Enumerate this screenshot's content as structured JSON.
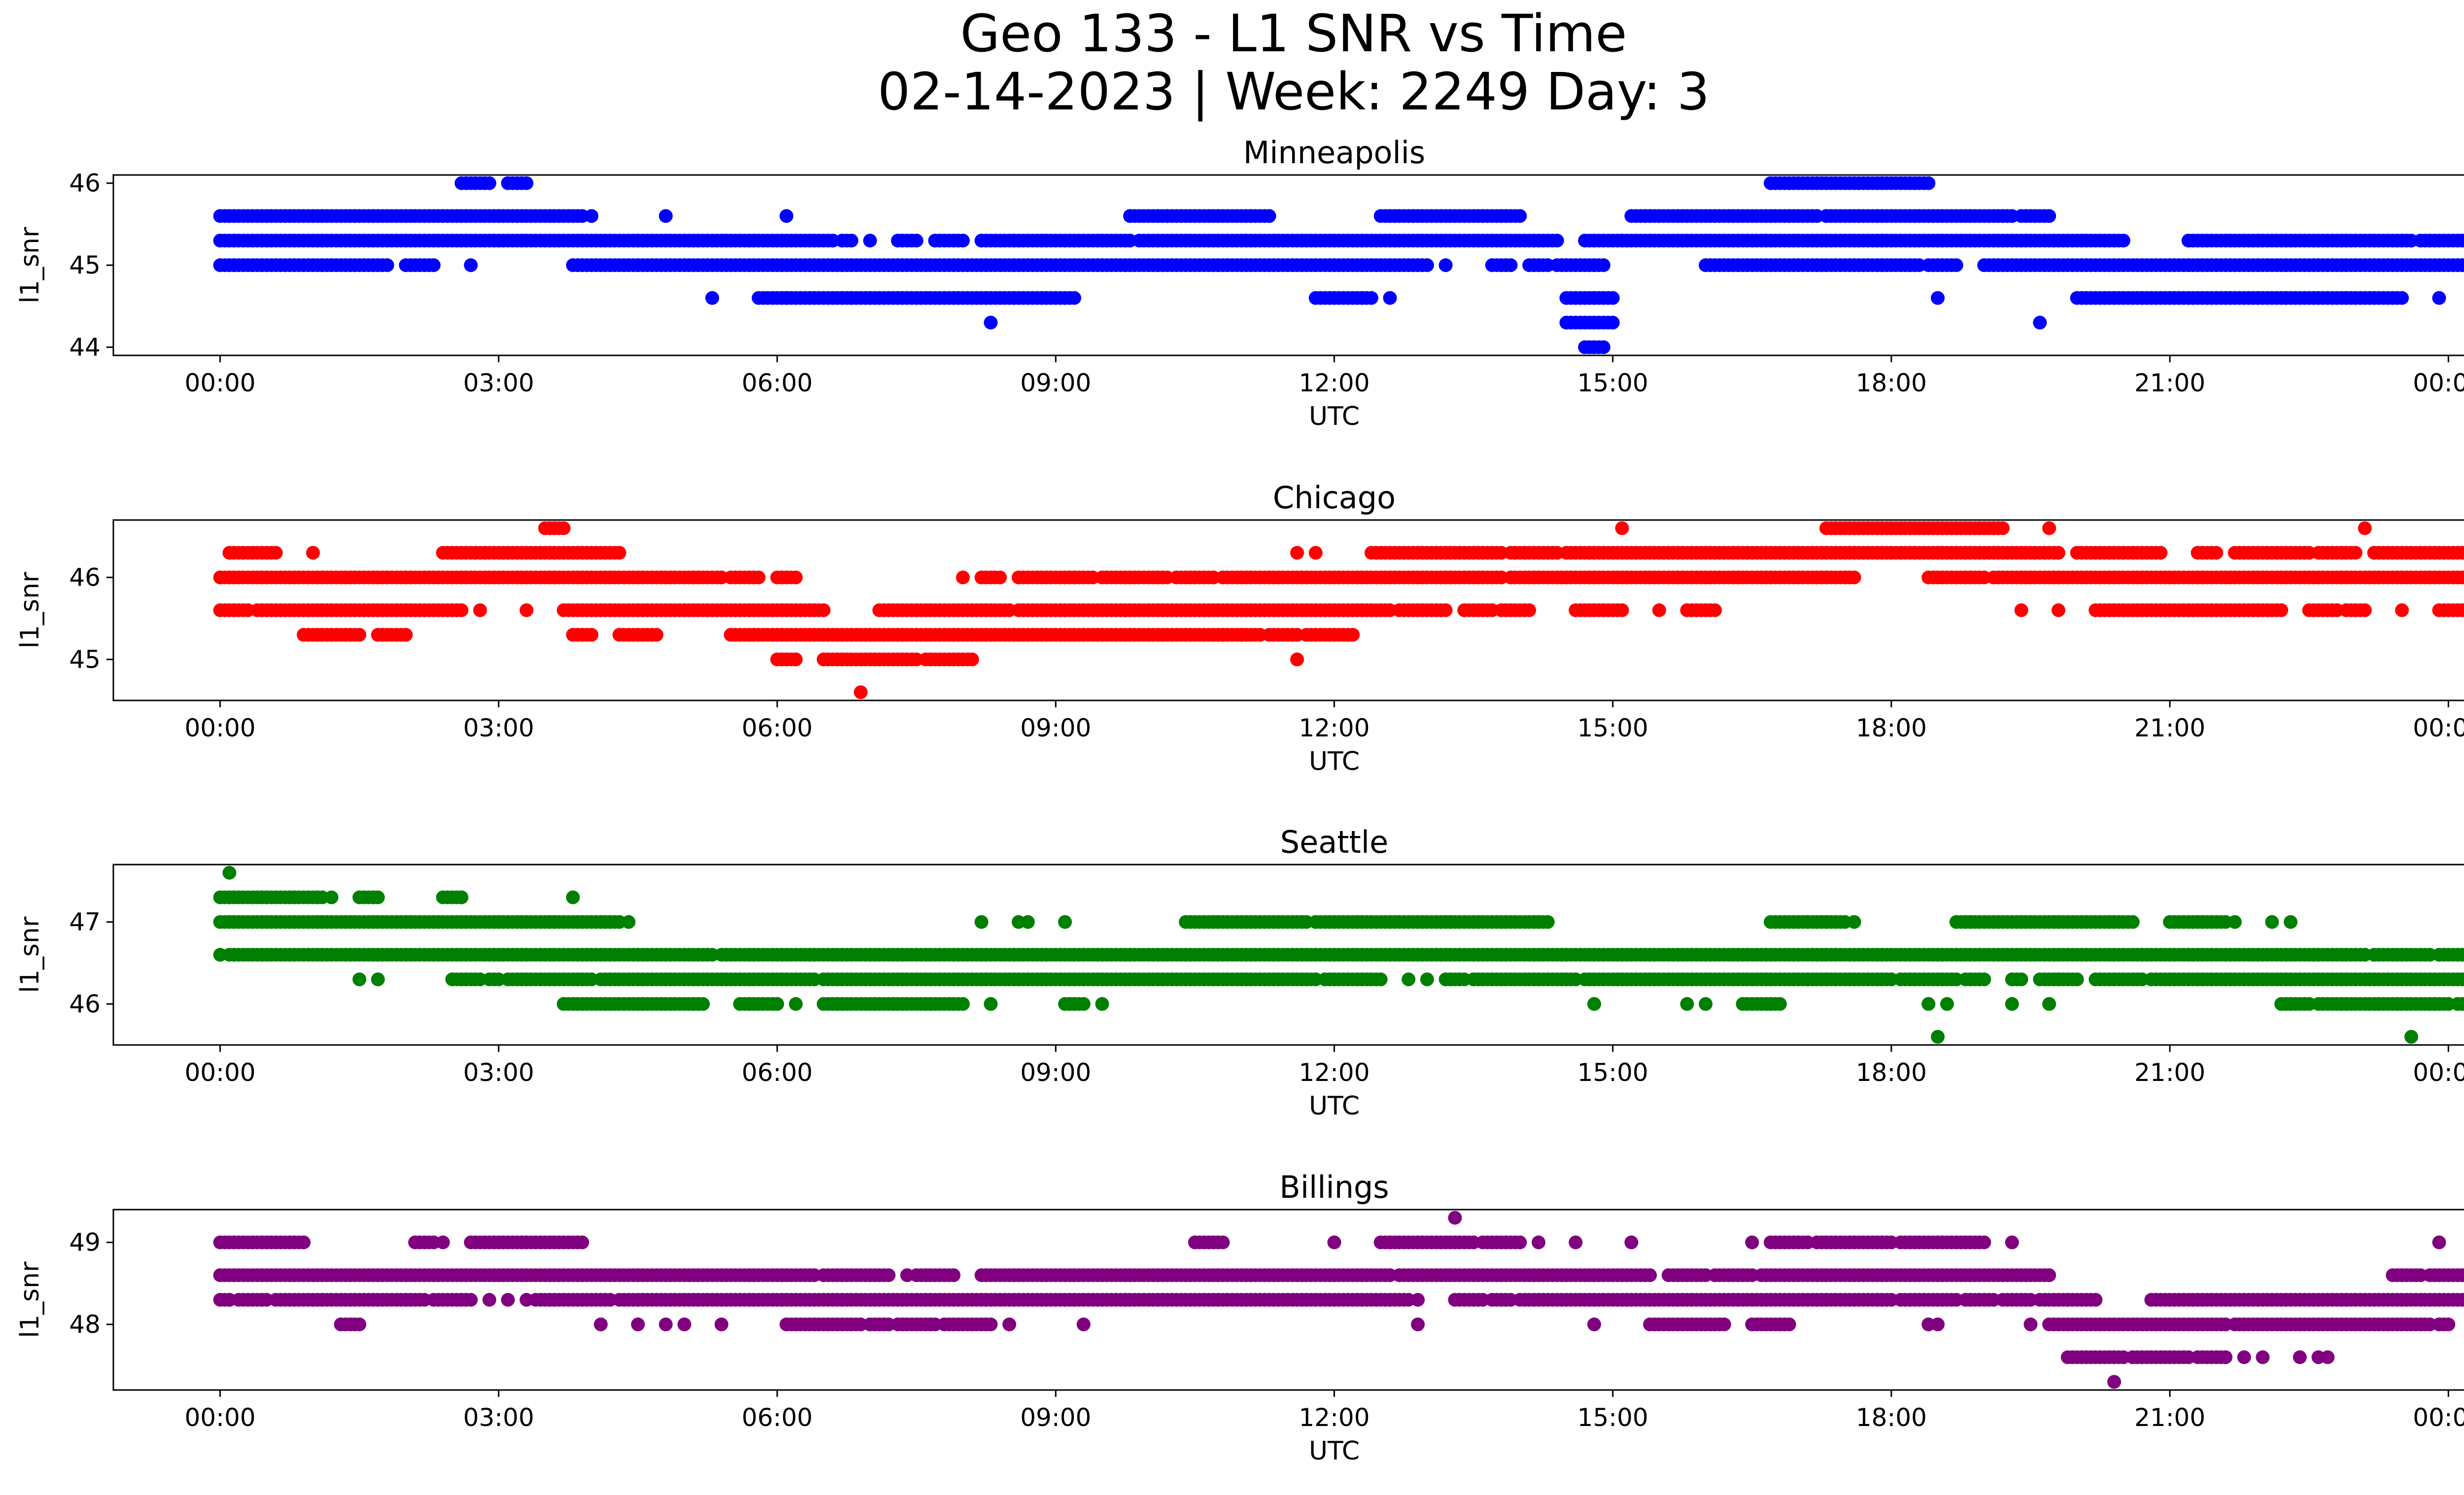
{
  "figure": {
    "title_line1": "Geo 133 - L1 SNR vs Time",
    "title_line2": "02-14-2023 | Week: 2249 Day: 3"
  },
  "chart_data": [
    {
      "type": "scatter",
      "title": "Minneapolis",
      "xlabel": "UTC",
      "ylabel": "l1_snr",
      "color": "#0000ff",
      "xticks": [
        "00:00",
        "03:00",
        "06:00",
        "09:00",
        "12:00",
        "15:00",
        "18:00",
        "21:00",
        "00:00"
      ],
      "yticks": [
        44,
        45,
        46
      ],
      "xlim": [
        -1.15,
        25.15
      ],
      "ylim": [
        43.9,
        46.1
      ],
      "series": [
        {
          "y": 46.0,
          "ranges": [
            [
              2.6,
              2.9
            ],
            [
              3.1,
              3.3
            ],
            [
              16.7,
              18.4
            ]
          ],
          "points": []
        },
        {
          "y": 45.6,
          "ranges": [
            [
              0.0,
              3.9
            ],
            [
              9.8,
              11.3
            ],
            [
              12.5,
              14.0
            ],
            [
              15.2,
              17.2
            ],
            [
              17.3,
              19.3
            ],
            [
              19.4,
              19.7
            ]
          ],
          "points": [
            4.0,
            4.8,
            6.1,
            10.2
          ]
        },
        {
          "y": 45.3,
          "ranges": [
            [
              0.0,
              6.6
            ],
            [
              6.7,
              6.8
            ],
            [
              7.3,
              7.5
            ],
            [
              7.7,
              8.0
            ],
            [
              8.2,
              9.8
            ],
            [
              9.9,
              14.4
            ],
            [
              14.7,
              20.5
            ],
            [
              21.2,
              23.6
            ],
            [
              23.7,
              25.0
            ]
          ],
          "points": [
            7.0
          ]
        },
        {
          "y": 45.0,
          "ranges": [
            [
              0.0,
              1.8
            ],
            [
              2.0,
              2.3
            ],
            [
              3.8,
              13.0
            ],
            [
              13.7,
              13.9
            ],
            [
              14.1,
              14.3
            ],
            [
              14.4,
              14.9
            ],
            [
              16.0,
              18.3
            ],
            [
              18.4,
              18.7
            ],
            [
              19.0,
              25.0
            ]
          ],
          "points": [
            2.7,
            13.2
          ]
        },
        {
          "y": 44.6,
          "ranges": [
            [
              5.8,
              6.8
            ],
            [
              6.8,
              9.2
            ],
            [
              11.8,
              12.4
            ],
            [
              14.5,
              15.0
            ],
            [
              20.0,
              23.5
            ]
          ],
          "points": [
            5.3,
            6.1,
            12.6,
            18.5,
            23.9
          ]
        },
        {
          "y": 44.3,
          "ranges": [
            [
              14.5,
              15.0
            ]
          ],
          "points": [
            8.3,
            19.6
          ]
        },
        {
          "y": 44.0,
          "ranges": [
            [
              14.7,
              14.9
            ]
          ],
          "points": []
        }
      ]
    },
    {
      "type": "scatter",
      "title": "Chicago",
      "xlabel": "UTC",
      "ylabel": "l1_snr",
      "color": "#ff0000",
      "xticks": [
        "00:00",
        "03:00",
        "06:00",
        "09:00",
        "12:00",
        "15:00",
        "18:00",
        "21:00",
        "00:00"
      ],
      "yticks": [
        45,
        46
      ],
      "xlim": [
        -1.15,
        25.15
      ],
      "ylim": [
        44.5,
        46.7
      ],
      "series": [
        {
          "y": 46.6,
          "ranges": [
            [
              3.5,
              3.7
            ],
            [
              17.3,
              19.2
            ]
          ],
          "points": [
            15.1,
            19.7,
            23.1
          ]
        },
        {
          "y": 46.3,
          "ranges": [
            [
              0.1,
              0.6
            ],
            [
              2.4,
              4.3
            ],
            [
              12.4,
              13.8
            ],
            [
              13.9,
              14.4
            ],
            [
              14.5,
              19.8
            ],
            [
              20.0,
              20.9
            ],
            [
              21.3,
              21.5
            ],
            [
              21.7,
              22.5
            ],
            [
              22.6,
              23.0
            ],
            [
              23.2,
              25.0
            ]
          ],
          "points": [
            1.0,
            11.6,
            11.8
          ]
        },
        {
          "y": 46.0,
          "ranges": [
            [
              0.0,
              1.8
            ],
            [
              1.8,
              5.4
            ],
            [
              5.5,
              5.8
            ],
            [
              6.0,
              6.2
            ],
            [
              8.2,
              8.4
            ],
            [
              8.6,
              9.4
            ],
            [
              9.5,
              10.2
            ],
            [
              10.3,
              10.7
            ],
            [
              10.8,
              13.8
            ],
            [
              13.9,
              17.6
            ],
            [
              18.4,
              19.0
            ],
            [
              19.1,
              25.0
            ]
          ],
          "points": [
            8.0
          ]
        },
        {
          "y": 45.6,
          "ranges": [
            [
              0.0,
              0.3
            ],
            [
              0.4,
              2.6
            ],
            [
              3.7,
              6.5
            ],
            [
              7.1,
              8.5
            ],
            [
              8.6,
              12.6
            ],
            [
              12.7,
              13.2
            ],
            [
              13.4,
              13.7
            ],
            [
              13.8,
              14.1
            ],
            [
              14.6,
              15.1
            ],
            [
              15.8,
              16.1
            ],
            [
              20.2,
              22.2
            ],
            [
              22.5,
              22.8
            ],
            [
              22.9,
              23.1
            ],
            [
              23.9,
              25.0
            ]
          ],
          "points": [
            2.8,
            3.3,
            15.5,
            19.4,
            19.8,
            23.5,
            24.2
          ]
        },
        {
          "y": 45.3,
          "ranges": [
            [
              0.9,
              1.5
            ],
            [
              1.7,
              2.0
            ],
            [
              3.8,
              4.0
            ],
            [
              4.3,
              4.7
            ],
            [
              5.5,
              11.2
            ],
            [
              11.3,
              11.6
            ],
            [
              11.7,
              12.2
            ]
          ],
          "points": [
            10.8,
            11.0
          ]
        },
        {
          "y": 45.0,
          "ranges": [
            [
              6.0,
              6.2
            ],
            [
              6.5,
              7.5
            ],
            [
              7.6,
              8.1
            ]
          ],
          "points": [
            11.6
          ]
        },
        {
          "y": 44.6,
          "ranges": [],
          "points": [
            6.9
          ]
        }
      ]
    },
    {
      "type": "scatter",
      "title": "Seattle",
      "xlabel": "UTC",
      "ylabel": "l1_snr",
      "color": "#008000",
      "xticks": [
        "00:00",
        "03:00",
        "06:00",
        "09:00",
        "12:00",
        "15:00",
        "18:00",
        "21:00",
        "00:00"
      ],
      "yticks": [
        46,
        47
      ],
      "xlim": [
        -1.15,
        25.15
      ],
      "ylim": [
        45.5,
        47.7
      ],
      "series": [
        {
          "y": 47.6,
          "ranges": [],
          "points": [
            0.1
          ]
        },
        {
          "y": 47.3,
          "ranges": [
            [
              0.0,
              1.1
            ],
            [
              1.5,
              1.7
            ],
            [
              2.4,
              2.6
            ]
          ],
          "points": [
            1.2,
            3.8
          ]
        },
        {
          "y": 47.0,
          "ranges": [
            [
              0.0,
              4.3
            ],
            [
              10.4,
              11.7
            ],
            [
              11.8,
              14.3
            ],
            [
              16.7,
              17.5
            ],
            [
              18.7,
              20.6
            ],
            [
              21.0,
              21.6
            ]
          ],
          "points": [
            4.4,
            8.2,
            8.6,
            8.7,
            9.1,
            17.1,
            17.6,
            21.7,
            22.1,
            22.3
          ]
        },
        {
          "y": 46.6,
          "ranges": [
            [
              0.1,
              5.3
            ],
            [
              5.4,
              23.1
            ],
            [
              23.2,
              23.8
            ],
            [
              23.9,
              25.0
            ]
          ],
          "points": [
            0.0
          ]
        },
        {
          "y": 46.3,
          "ranges": [
            [
              2.5,
              2.8
            ],
            [
              2.9,
              3.0
            ],
            [
              3.1,
              4.0
            ],
            [
              4.1,
              6.4
            ],
            [
              6.5,
              11.8
            ],
            [
              11.9,
              12.5
            ],
            [
              13.2,
              13.4
            ],
            [
              13.5,
              14.6
            ],
            [
              14.7,
              18.0
            ],
            [
              18.1,
              18.7
            ],
            [
              18.8,
              19.0
            ],
            [
              19.3,
              19.4
            ],
            [
              19.6,
              20.0
            ],
            [
              20.2,
              20.7
            ],
            [
              20.8,
              25.0
            ]
          ],
          "points": [
            1.5,
            1.7,
            12.8,
            13.0,
            17.1,
            17.3,
            19.8
          ]
        },
        {
          "y": 46.0,
          "ranges": [
            [
              3.7,
              5.2
            ],
            [
              5.6,
              6.0
            ],
            [
              6.5,
              8.0
            ],
            [
              9.1,
              9.3
            ],
            [
              16.4,
              16.8
            ],
            [
              22.2,
              22.5
            ],
            [
              22.6,
              24.0
            ],
            [
              24.1,
              25.0
            ]
          ],
          "points": [
            6.2,
            8.3,
            9.5,
            14.8,
            15.8,
            16.0,
            18.4,
            18.6,
            19.3,
            19.7
          ]
        },
        {
          "y": 45.6,
          "ranges": [],
          "points": [
            18.5,
            23.6
          ]
        }
      ]
    },
    {
      "type": "scatter",
      "title": "Billings",
      "xlabel": "UTC",
      "ylabel": "l1_snr",
      "color": "#800080",
      "xticks": [
        "00:00",
        "03:00",
        "06:00",
        "09:00",
        "12:00",
        "15:00",
        "18:00",
        "21:00",
        "00:00"
      ],
      "yticks": [
        48,
        49
      ],
      "xlim": [
        -1.15,
        25.15
      ],
      "ylim": [
        47.2,
        49.4
      ],
      "series": [
        {
          "y": 49.3,
          "ranges": [],
          "points": [
            13.3
          ]
        },
        {
          "y": 49.0,
          "ranges": [
            [
              0.0,
              0.9
            ],
            [
              2.1,
              2.3
            ],
            [
              2.7,
              3.9
            ],
            [
              10.5,
              10.8
            ],
            [
              12.5,
              13.5
            ],
            [
              13.6,
              14.0
            ],
            [
              16.7,
              17.1
            ],
            [
              17.2,
              18.0
            ],
            [
              18.1,
              19.0
            ]
          ],
          "points": [
            2.4,
            12.0,
            14.2,
            14.6,
            15.2,
            16.5,
            19.3,
            23.9
          ]
        },
        {
          "y": 48.6,
          "ranges": [
            [
              0.0,
              6.4
            ],
            [
              6.5,
              7.2
            ],
            [
              7.5,
              7.9
            ],
            [
              8.2,
              12.6
            ],
            [
              12.7,
              15.4
            ],
            [
              15.6,
              16.0
            ],
            [
              16.1,
              16.5
            ],
            [
              16.6,
              19.7
            ],
            [
              23.4,
              23.7
            ],
            [
              23.8,
              25.0
            ]
          ],
          "points": [
            7.4
          ]
        },
        {
          "y": 48.3,
          "ranges": [
            [
              0.0,
              0.1
            ],
            [
              0.2,
              0.5
            ],
            [
              0.6,
              2.2
            ],
            [
              2.3,
              2.7
            ],
            [
              3.4,
              4.2
            ],
            [
              4.3,
              12.8
            ],
            [
              13.3,
              13.6
            ],
            [
              13.7,
              13.9
            ],
            [
              14.0,
              18.0
            ],
            [
              18.1,
              18.7
            ],
            [
              18.8,
              19.1
            ],
            [
              19.2,
              19.5
            ],
            [
              19.6,
              20.2
            ],
            [
              20.8,
              25.0
            ]
          ],
          "points": [
            0.1,
            2.9,
            3.1,
            3.3,
            12.9,
            19.9
          ]
        },
        {
          "y": 48.0,
          "ranges": [
            [
              1.3,
              1.5
            ],
            [
              6.1,
              6.9
            ],
            [
              7.0,
              7.2
            ],
            [
              7.3,
              7.7
            ],
            [
              7.8,
              8.3
            ],
            [
              15.4,
              16.2
            ],
            [
              16.5,
              16.9
            ],
            [
              19.7,
              21.6
            ],
            [
              21.7,
              23.8
            ],
            [
              23.9,
              24.0
            ]
          ],
          "points": [
            4.1,
            4.5,
            4.8,
            5.0,
            5.4,
            8.5,
            9.3,
            12.9,
            14.8,
            18.4,
            18.5,
            19.5
          ]
        },
        {
          "y": 47.6,
          "ranges": [
            [
              19.9,
              20.5
            ],
            [
              20.6,
              21.2
            ],
            [
              21.3,
              21.6
            ]
          ],
          "points": [
            21.8,
            22.0,
            22.4,
            22.6,
            22.7
          ]
        },
        {
          "y": 47.3,
          "ranges": [],
          "points": [
            20.4
          ]
        }
      ]
    }
  ]
}
